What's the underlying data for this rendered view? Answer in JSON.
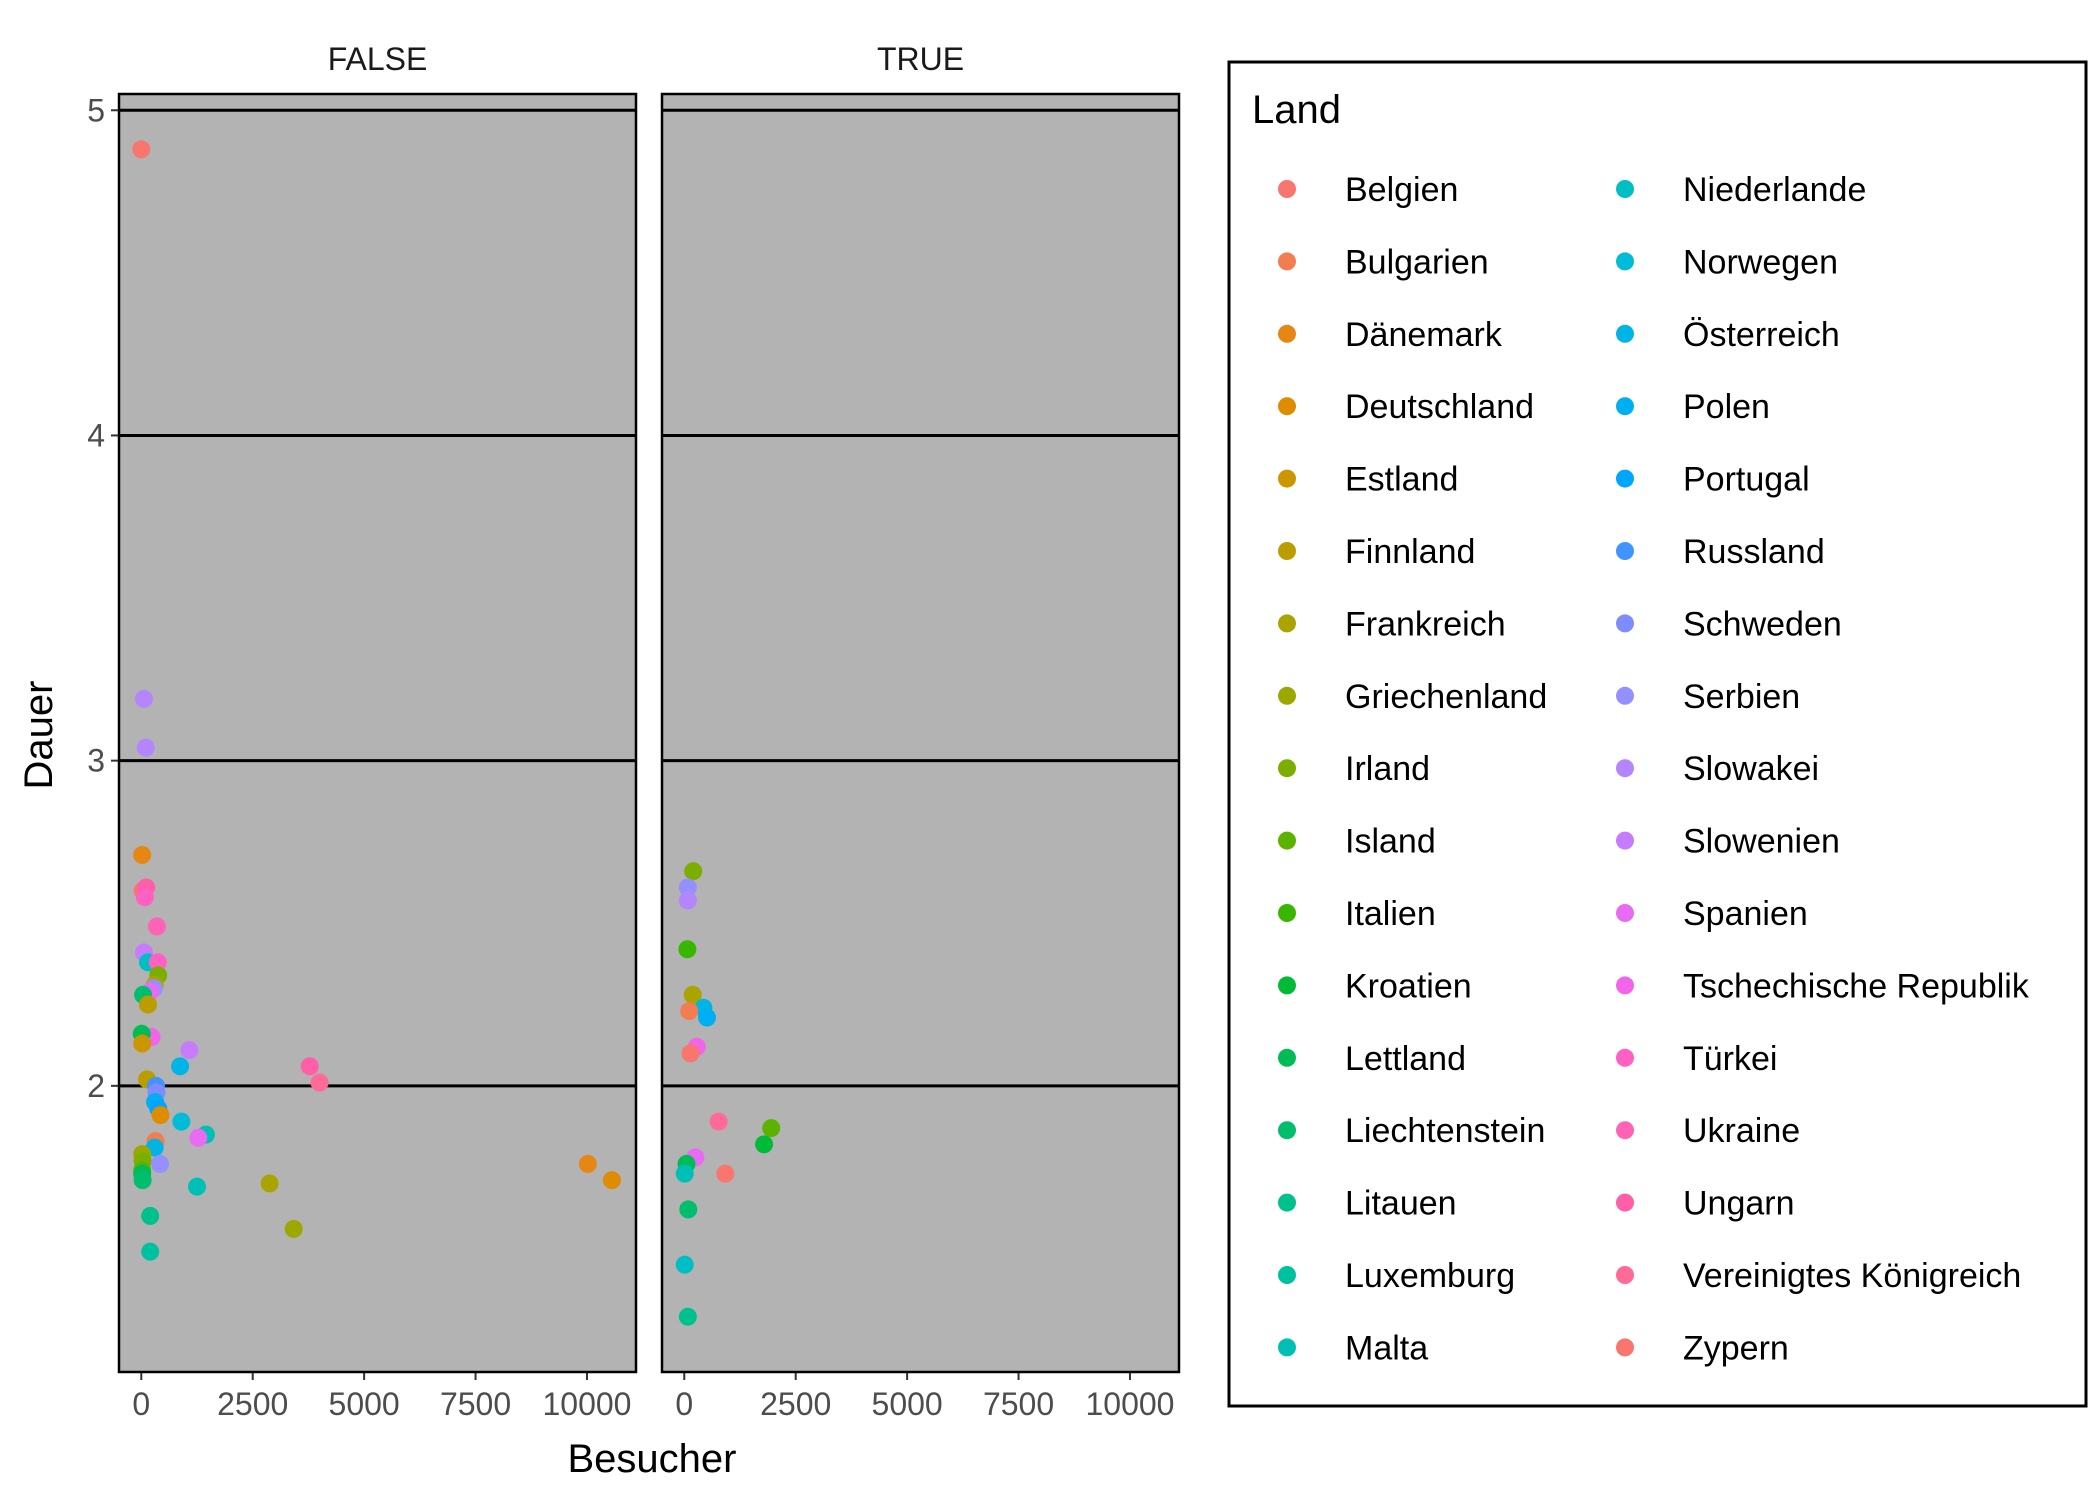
{
  "chart_data": {
    "type": "scatter",
    "xlabel": "Besucher",
    "ylabel": "Dauer",
    "xlim": [
      -500,
      11100
    ],
    "ylim": [
      1.12,
      5.05
    ],
    "xticks": [
      0,
      2500,
      5000,
      7500,
      10000
    ],
    "xtick_labels": [
      "0",
      "2500",
      "5000",
      "7500",
      "10000"
    ],
    "yticks": [
      2,
      3,
      4,
      5
    ],
    "ytick_labels": [
      "2",
      "3",
      "4",
      "5"
    ],
    "grid": true,
    "panel_background": "#b3b3b3",
    "legend_position": "right",
    "legend_title": "Land",
    "panels": [
      {
        "label": "FALSE",
        "points": [
          {
            "land": "Zypern",
            "x": 0,
            "y": 4.88
          },
          {
            "land": "Slowakei",
            "x": 60,
            "y": 3.19
          },
          {
            "land": "Slowakei",
            "x": 100,
            "y": 3.04
          },
          {
            "land": "Dänemark",
            "x": 20,
            "y": 2.71
          },
          {
            "land": "Belgien",
            "x": 30,
            "y": 2.6
          },
          {
            "land": "Ungarn",
            "x": 110,
            "y": 2.61
          },
          {
            "land": "Türkei",
            "x": 80,
            "y": 2.58
          },
          {
            "land": "Ukraine",
            "x": 350,
            "y": 2.49
          },
          {
            "land": "Slowenien",
            "x": 60,
            "y": 2.41
          },
          {
            "land": "Niederlande",
            "x": 150,
            "y": 2.38
          },
          {
            "land": "Türkei",
            "x": 370,
            "y": 2.38
          },
          {
            "land": "Irland",
            "x": 380,
            "y": 2.34
          },
          {
            "land": "Frankreich",
            "x": 300,
            "y": 2.31
          },
          {
            "land": "Serbien",
            "x": 280,
            "y": 2.3
          },
          {
            "land": "Spanien",
            "x": 200,
            "y": 2.29
          },
          {
            "land": "Liechtenstein",
            "x": 40,
            "y": 2.28
          },
          {
            "land": "Finnland",
            "x": 150,
            "y": 2.25
          },
          {
            "land": "Tschechische Republik",
            "x": 230,
            "y": 2.15
          },
          {
            "land": "Lettland",
            "x": 10,
            "y": 2.16
          },
          {
            "land": "Estland",
            "x": 20,
            "y": 2.13
          },
          {
            "land": "Slowenien",
            "x": 1080,
            "y": 2.11
          },
          {
            "land": "Österreich",
            "x": 870,
            "y": 2.06
          },
          {
            "land": "Ungarn",
            "x": 3780,
            "y": 2.06
          },
          {
            "land": "Vereinigtes Königreich",
            "x": 4000,
            "y": 2.01
          },
          {
            "land": "Finnland",
            "x": 130,
            "y": 2.02
          },
          {
            "land": "Russland",
            "x": 330,
            "y": 2.0
          },
          {
            "land": "Schweden",
            "x": 340,
            "y": 1.98
          },
          {
            "land": "Polen",
            "x": 310,
            "y": 1.95
          },
          {
            "land": "Portugal",
            "x": 380,
            "y": 1.93
          },
          {
            "land": "Deutschland",
            "x": 430,
            "y": 1.91
          },
          {
            "land": "Norwegen",
            "x": 900,
            "y": 1.89
          },
          {
            "land": "Malta",
            "x": 1450,
            "y": 1.85
          },
          {
            "land": "Spanien",
            "x": 1280,
            "y": 1.84
          },
          {
            "land": "Bulgarien",
            "x": 320,
            "y": 1.83
          },
          {
            "land": "Österreich",
            "x": 300,
            "y": 1.81
          },
          {
            "land": "Griechenland",
            "x": 20,
            "y": 1.79
          },
          {
            "land": "Irland",
            "x": 30,
            "y": 1.77
          },
          {
            "land": "Serbien",
            "x": 420,
            "y": 1.76
          },
          {
            "land": "Dänemark",
            "x": 10020,
            "y": 1.76
          },
          {
            "land": "Island",
            "x": 20,
            "y": 1.74
          },
          {
            "land": "Lettland",
            "x": 20,
            "y": 1.73
          },
          {
            "land": "Liechtenstein",
            "x": 30,
            "y": 1.71
          },
          {
            "land": "Deutschland",
            "x": 10560,
            "y": 1.71
          },
          {
            "land": "Frankreich",
            "x": 2880,
            "y": 1.7
          },
          {
            "land": "Malta",
            "x": 1250,
            "y": 1.69
          },
          {
            "land": "Litauen",
            "x": 200,
            "y": 1.6
          },
          {
            "land": "Griechenland",
            "x": 3420,
            "y": 1.56
          },
          {
            "land": "Luxemburg",
            "x": 200,
            "y": 1.49
          }
        ]
      },
      {
        "label": "TRUE",
        "points": [
          {
            "land": "Irland",
            "x": 200,
            "y": 2.66
          },
          {
            "land": "Serbien",
            "x": 80,
            "y": 2.61
          },
          {
            "land": "Slowakei",
            "x": 80,
            "y": 2.57
          },
          {
            "land": "Italien",
            "x": 70,
            "y": 2.42
          },
          {
            "land": "Frankreich",
            "x": 190,
            "y": 2.28
          },
          {
            "land": "Österreich",
            "x": 430,
            "y": 2.24
          },
          {
            "land": "Bulgarien",
            "x": 110,
            "y": 2.23
          },
          {
            "land": "Polen",
            "x": 510,
            "y": 2.21
          },
          {
            "land": "Tschechische Republik",
            "x": 280,
            "y": 2.12
          },
          {
            "land": "Belgien",
            "x": 140,
            "y": 2.1
          },
          {
            "land": "Vereinigtes Königreich",
            "x": 770,
            "y": 1.89
          },
          {
            "land": "Island",
            "x": 1950,
            "y": 1.87
          },
          {
            "land": "Kroatien",
            "x": 1790,
            "y": 1.82
          },
          {
            "land": "Spanien",
            "x": 250,
            "y": 1.78
          },
          {
            "land": "Lettland",
            "x": 50,
            "y": 1.76
          },
          {
            "land": "Zypern",
            "x": 920,
            "y": 1.73
          },
          {
            "land": "Malta",
            "x": 10,
            "y": 1.73
          },
          {
            "land": "Liechtenstein",
            "x": 90,
            "y": 1.62
          },
          {
            "land": "Niederlande",
            "x": 10,
            "y": 1.45
          },
          {
            "land": "Litauen",
            "x": 80,
            "y": 1.29
          }
        ]
      }
    ],
    "legend": [
      {
        "name": "Belgien",
        "color": "#F8766D"
      },
      {
        "name": "Bulgarien",
        "color": "#F17D50"
      },
      {
        "name": "Dänemark",
        "color": "#E68613"
      },
      {
        "name": "Deutschland",
        "color": "#DE8C00"
      },
      {
        "name": "Estland",
        "color": "#CD9600"
      },
      {
        "name": "Finnland",
        "color": "#BB9D00"
      },
      {
        "name": "Frankreich",
        "color": "#ABA300"
      },
      {
        "name": "Griechenland",
        "color": "#9CA700"
      },
      {
        "name": "Irland",
        "color": "#7CAE00"
      },
      {
        "name": "Island",
        "color": "#5BB300"
      },
      {
        "name": "Italien",
        "color": "#39B600"
      },
      {
        "name": "Kroatien",
        "color": "#00BA38"
      },
      {
        "name": "Lettland",
        "color": "#00BC56"
      },
      {
        "name": "Liechtenstein",
        "color": "#00BE6C"
      },
      {
        "name": "Litauen",
        "color": "#00C08B"
      },
      {
        "name": "Luxemburg",
        "color": "#00C19F"
      },
      {
        "name": "Malta",
        "color": "#00BFB5"
      },
      {
        "name": "Niederlande",
        "color": "#00BFC4"
      },
      {
        "name": "Norwegen",
        "color": "#00BCD8"
      },
      {
        "name": "Österreich",
        "color": "#00B4E6"
      },
      {
        "name": "Polen",
        "color": "#00AEF2"
      },
      {
        "name": "Portugal",
        "color": "#00A5FF"
      },
      {
        "name": "Russland",
        "color": "#3F94FF"
      },
      {
        "name": "Schweden",
        "color": "#7F8CFF"
      },
      {
        "name": "Serbien",
        "color": "#9590FF"
      },
      {
        "name": "Slowakei",
        "color": "#B385FF"
      },
      {
        "name": "Slowenien",
        "color": "#C77CFF"
      },
      {
        "name": "Spanien",
        "color": "#E76BF3"
      },
      {
        "name": "Tschechische Republik",
        "color": "#F166E8"
      },
      {
        "name": "Türkei",
        "color": "#FF61C3"
      },
      {
        "name": "Ukraine",
        "color": "#FF63B6"
      },
      {
        "name": "Ungarn",
        "color": "#FF5FA7"
      },
      {
        "name": "Vereinigtes Königreich",
        "color": "#FF6A98"
      },
      {
        "name": "Zypern",
        "color": "#F8766D"
      }
    ]
  }
}
